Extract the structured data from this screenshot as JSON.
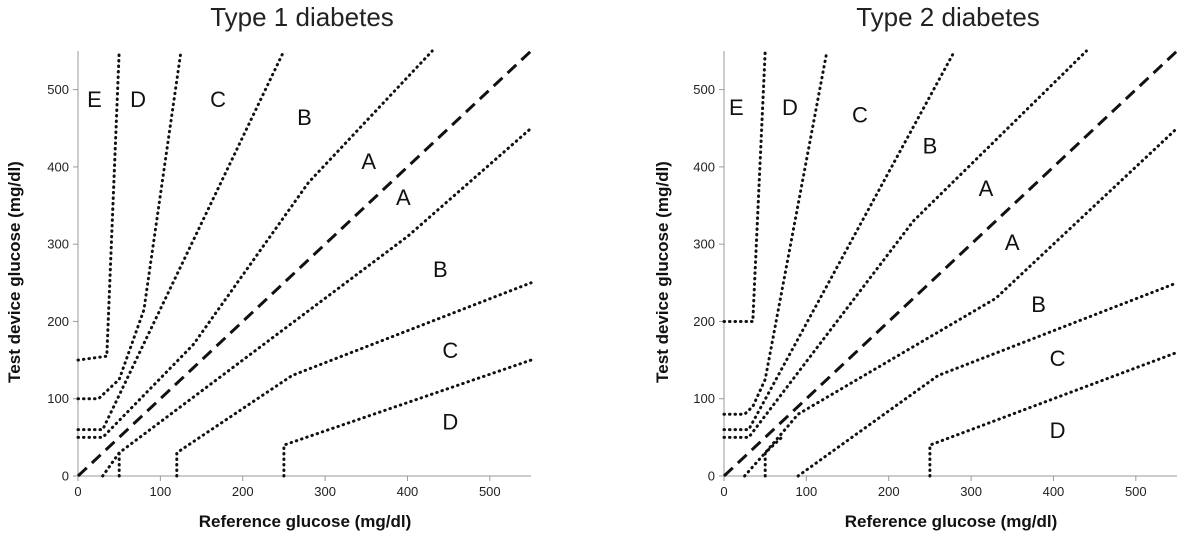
{
  "chart_data": [
    {
      "type": "line",
      "title": "Type 1 diabetes",
      "xlabel": "Reference glucose (mg/dl)",
      "ylabel": "Test device glucose (mg/dl)",
      "xlim": [
        0,
        550
      ],
      "ylim": [
        0,
        550
      ],
      "xticks": [
        0,
        100,
        200,
        300,
        400,
        500
      ],
      "yticks": [
        0,
        100,
        200,
        300,
        400,
        500
      ],
      "grid": false,
      "identity_line": [
        [
          0,
          0
        ],
        [
          550,
          550
        ]
      ],
      "boundaries": [
        [
          [
            0,
            150
          ],
          [
            35,
            155
          ],
          [
            50,
            550
          ]
        ],
        [
          [
            0,
            100
          ],
          [
            25,
            100
          ],
          [
            50,
            125
          ],
          [
            80,
            215
          ],
          [
            125,
            550
          ]
        ],
        [
          [
            0,
            60
          ],
          [
            30,
            60
          ],
          [
            250,
            550
          ]
        ],
        [
          [
            0,
            50
          ],
          [
            30,
            50
          ],
          [
            140,
            170
          ],
          [
            280,
            380
          ],
          [
            430,
            550
          ]
        ],
        [
          [
            30,
            0
          ],
          [
            50,
            30
          ],
          [
            400,
            310
          ],
          [
            550,
            450
          ]
        ],
        [
          [
            50,
            0
          ],
          [
            50,
            30
          ]
        ],
        [
          [
            120,
            0
          ],
          [
            120,
            30
          ],
          [
            260,
            130
          ],
          [
            550,
            250
          ]
        ],
        [
          [
            250,
            0
          ],
          [
            250,
            40
          ],
          [
            550,
            150
          ]
        ]
      ],
      "zone_labels": [
        {
          "text": "E",
          "x": 20,
          "y": 485
        },
        {
          "text": "D",
          "x": 73,
          "y": 485
        },
        {
          "text": "C",
          "x": 170,
          "y": 485
        },
        {
          "text": "B",
          "x": 275,
          "y": 462
        },
        {
          "text": "A",
          "x": 353,
          "y": 405
        },
        {
          "text": "A",
          "x": 395,
          "y": 358
        },
        {
          "text": "B",
          "x": 440,
          "y": 265
        },
        {
          "text": "C",
          "x": 452,
          "y": 160
        },
        {
          "text": "D",
          "x": 452,
          "y": 68
        }
      ]
    },
    {
      "type": "line",
      "title": "Type 2 diabetes",
      "xlabel": "Reference glucose (mg/dl)",
      "ylabel": "Test device glucose (mg/dl)",
      "xlim": [
        0,
        550
      ],
      "ylim": [
        0,
        550
      ],
      "xticks": [
        0,
        100,
        200,
        300,
        400,
        500
      ],
      "yticks": [
        0,
        100,
        200,
        300,
        400,
        500
      ],
      "grid": false,
      "identity_line": [
        [
          0,
          0
        ],
        [
          550,
          550
        ]
      ],
      "boundaries": [
        [
          [
            0,
            200
          ],
          [
            35,
            200
          ],
          [
            50,
            550
          ]
        ],
        [
          [
            0,
            80
          ],
          [
            25,
            80
          ],
          [
            35,
            90
          ],
          [
            50,
            125
          ],
          [
            125,
            550
          ]
        ],
        [
          [
            0,
            60
          ],
          [
            30,
            60
          ],
          [
            280,
            550
          ]
        ],
        [
          [
            0,
            50
          ],
          [
            30,
            50
          ],
          [
            230,
            330
          ],
          [
            440,
            550
          ]
        ],
        [
          [
            25,
            0
          ],
          [
            50,
            30
          ],
          [
            90,
            80
          ],
          [
            330,
            230
          ],
          [
            550,
            450
          ]
        ],
        [
          [
            50,
            0
          ],
          [
            50,
            30
          ],
          [
            70,
            50
          ]
        ],
        [
          [
            90,
            0
          ],
          [
            260,
            130
          ],
          [
            550,
            250
          ]
        ],
        [
          [
            250,
            0
          ],
          [
            250,
            40
          ],
          [
            550,
            160
          ]
        ]
      ],
      "zone_labels": [
        {
          "text": "E",
          "x": 15,
          "y": 475
        },
        {
          "text": "D",
          "x": 80,
          "y": 475
        },
        {
          "text": "C",
          "x": 165,
          "y": 465
        },
        {
          "text": "B",
          "x": 250,
          "y": 425
        },
        {
          "text": "A",
          "x": 318,
          "y": 370
        },
        {
          "text": "A",
          "x": 350,
          "y": 300
        },
        {
          "text": "B",
          "x": 382,
          "y": 220
        },
        {
          "text": "C",
          "x": 405,
          "y": 150
        },
        {
          "text": "D",
          "x": 405,
          "y": 57
        }
      ]
    }
  ]
}
